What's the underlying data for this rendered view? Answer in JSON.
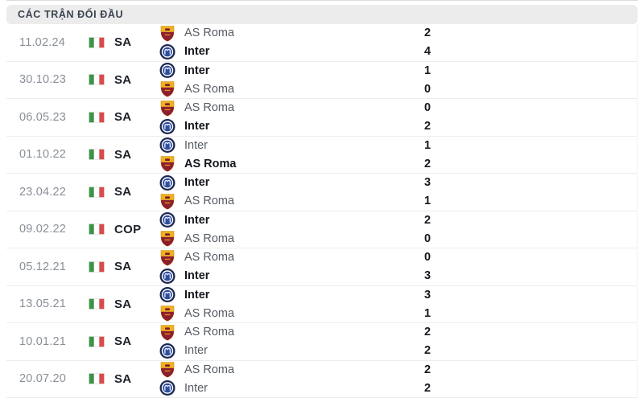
{
  "header": {
    "title": "CÁC TRẬN ĐỐI ĐẦU"
  },
  "colors": {
    "header_bg": "#ececec",
    "header_text": "#3a4450",
    "date_text": "#8a8f97",
    "divider": "#ecedef",
    "text_winner": "#15181e",
    "text_normal": "#555b63",
    "roma_gold": "#edb123",
    "roma_maroon": "#8c1f2f",
    "inter_navy": "#1d2750",
    "inter_blue": "#2c4ea0",
    "flag_green": "#3d9348",
    "flag_red": "#d84b4b"
  },
  "matches": [
    {
      "date": "11.02.24",
      "flag": "italy-flag",
      "competition": "SA",
      "teams": [
        {
          "name": "AS Roma",
          "logo": "as-roma",
          "score": 2,
          "winner": false
        },
        {
          "name": "Inter",
          "logo": "inter",
          "score": 4,
          "winner": true
        }
      ]
    },
    {
      "date": "30.10.23",
      "flag": "italy-flag",
      "competition": "SA",
      "teams": [
        {
          "name": "Inter",
          "logo": "inter",
          "score": 1,
          "winner": true
        },
        {
          "name": "AS Roma",
          "logo": "as-roma",
          "score": 0,
          "winner": false
        }
      ]
    },
    {
      "date": "06.05.23",
      "flag": "italy-flag",
      "competition": "SA",
      "teams": [
        {
          "name": "AS Roma",
          "logo": "as-roma",
          "score": 0,
          "winner": false
        },
        {
          "name": "Inter",
          "logo": "inter",
          "score": 2,
          "winner": true
        }
      ]
    },
    {
      "date": "01.10.22",
      "flag": "italy-flag",
      "competition": "SA",
      "teams": [
        {
          "name": "Inter",
          "logo": "inter",
          "score": 1,
          "winner": false
        },
        {
          "name": "AS Roma",
          "logo": "as-roma",
          "score": 2,
          "winner": true
        }
      ]
    },
    {
      "date": "23.04.22",
      "flag": "italy-flag",
      "competition": "SA",
      "teams": [
        {
          "name": "Inter",
          "logo": "inter",
          "score": 3,
          "winner": true
        },
        {
          "name": "AS Roma",
          "logo": "as-roma",
          "score": 1,
          "winner": false
        }
      ]
    },
    {
      "date": "09.02.22",
      "flag": "italy-flag",
      "competition": "COP",
      "teams": [
        {
          "name": "Inter",
          "logo": "inter",
          "score": 2,
          "winner": true
        },
        {
          "name": "AS Roma",
          "logo": "as-roma",
          "score": 0,
          "winner": false
        }
      ]
    },
    {
      "date": "05.12.21",
      "flag": "italy-flag",
      "competition": "SA",
      "teams": [
        {
          "name": "AS Roma",
          "logo": "as-roma",
          "score": 0,
          "winner": false
        },
        {
          "name": "Inter",
          "logo": "inter",
          "score": 3,
          "winner": true
        }
      ]
    },
    {
      "date": "13.05.21",
      "flag": "italy-flag",
      "competition": "SA",
      "teams": [
        {
          "name": "Inter",
          "logo": "inter",
          "score": 3,
          "winner": true
        },
        {
          "name": "AS Roma",
          "logo": "as-roma",
          "score": 1,
          "winner": false
        }
      ]
    },
    {
      "date": "10.01.21",
      "flag": "italy-flag",
      "competition": "SA",
      "teams": [
        {
          "name": "AS Roma",
          "logo": "as-roma",
          "score": 2,
          "winner": false
        },
        {
          "name": "Inter",
          "logo": "inter",
          "score": 2,
          "winner": false
        }
      ]
    },
    {
      "date": "20.07.20",
      "flag": "italy-flag",
      "competition": "SA",
      "teams": [
        {
          "name": "AS Roma",
          "logo": "as-roma",
          "score": 2,
          "winner": false
        },
        {
          "name": "Inter",
          "logo": "inter",
          "score": 2,
          "winner": false
        }
      ]
    }
  ]
}
